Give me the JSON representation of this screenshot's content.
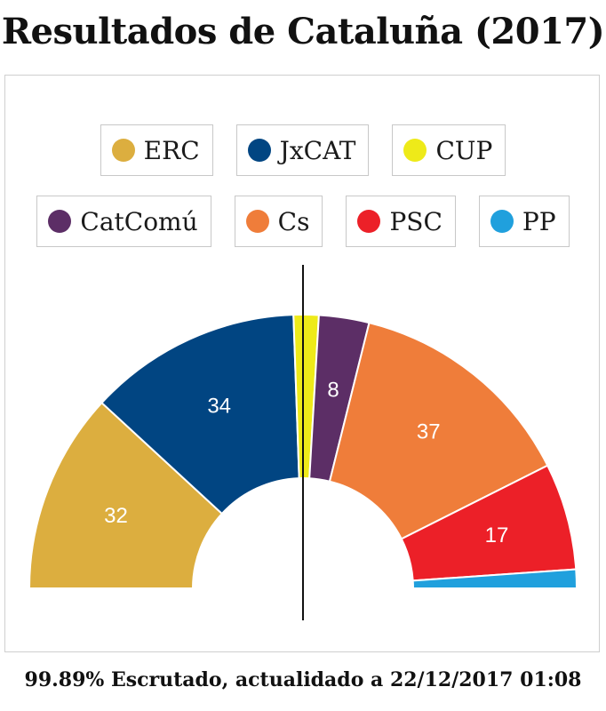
{
  "chart_data": {
    "type": "pie",
    "title": "Resultados de Cataluña (2017)",
    "categories": [
      "ERC",
      "JxCAT",
      "CUP",
      "CatComú",
      "Cs",
      "PSC",
      "PP"
    ],
    "values": [
      32,
      34,
      4,
      8,
      37,
      17,
      3
    ],
    "labels": [
      "32",
      "34",
      "",
      "8",
      "37",
      "17",
      ""
    ],
    "colors": [
      "#dcae3f",
      "#014582",
      "#eeea19",
      "#5c2e66",
      "#ef7d3a",
      "#ec2028",
      "#20a0dd"
    ],
    "legend_rows": [
      [
        "ERC",
        "JxCAT",
        "CUP"
      ],
      [
        "CatComú",
        "Cs",
        "PSC",
        "PP"
      ]
    ],
    "note": "99.89% Escrutado, actualidado a 22/12/2017 01:08"
  }
}
